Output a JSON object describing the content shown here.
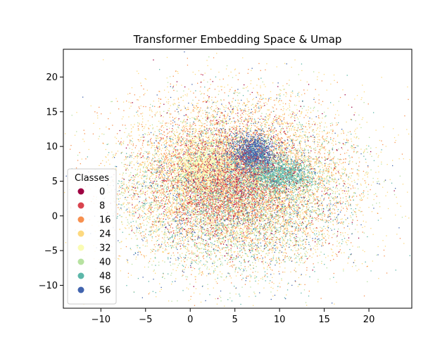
{
  "chart_data": {
    "type": "scatter",
    "title": "Transformer Embedding Space & Umap",
    "xlabel": "",
    "ylabel": "",
    "xlim": [
      -14.2,
      24.8
    ],
    "ylim": [
      -13.3,
      24.0
    ],
    "xticks": [
      -10,
      -5,
      0,
      5,
      10,
      15,
      20
    ],
    "yticks": [
      -10,
      -5,
      0,
      5,
      10,
      15,
      20
    ],
    "grid": false,
    "legend": {
      "title": "Classes",
      "placement": "lower-left",
      "entries": [
        {
          "label": "0",
          "color": "#9e0142"
        },
        {
          "label": "8",
          "color": "#d9444e"
        },
        {
          "label": "16",
          "color": "#f7904f"
        },
        {
          "label": "24",
          "color": "#fdd97f"
        },
        {
          "label": "32",
          "color": "#fafcb4"
        },
        {
          "label": "40",
          "color": "#b7e2a1"
        },
        {
          "label": "48",
          "color": "#5cb7a9"
        },
        {
          "label": "56",
          "color": "#4164ae"
        }
      ]
    },
    "point_count_approx": 20000,
    "clusters": [
      {
        "class_color": "#fdd97f",
        "center": [
          5,
          5
        ],
        "spread": [
          6.5,
          6
        ],
        "weight": 0.3
      },
      {
        "class_color": "#f7904f",
        "center": [
          5,
          5
        ],
        "spread": [
          6,
          5.5
        ],
        "weight": 0.18
      },
      {
        "class_color": "#b7e2a1",
        "center": [
          5,
          4
        ],
        "spread": [
          6,
          5.5
        ],
        "weight": 0.14
      },
      {
        "class_color": "#fafcb4",
        "center": [
          2,
          7
        ],
        "spread": [
          2,
          1.8
        ],
        "weight": 0.07
      },
      {
        "class_color": "#4164ae",
        "center": [
          7,
          9
        ],
        "spread": [
          1.3,
          1.4
        ],
        "weight": 0.06
      },
      {
        "class_color": "#5cb7a9",
        "center": [
          10,
          6
        ],
        "spread": [
          2,
          1.2
        ],
        "weight": 0.05
      },
      {
        "class_color": "#d9444e",
        "center": [
          4,
          5
        ],
        "spread": [
          3.5,
          3.5
        ],
        "weight": 0.08
      },
      {
        "class_color": "#5cb7a9",
        "center": [
          5,
          3
        ],
        "spread": [
          6.5,
          6
        ],
        "weight": 0.06
      },
      {
        "class_color": "#4164ae",
        "center": [
          5,
          4
        ],
        "spread": [
          6.5,
          6.5
        ],
        "weight": 0.04
      },
      {
        "class_color": "#9e0142",
        "center": [
          5,
          5
        ],
        "spread": [
          6,
          6
        ],
        "weight": 0.02
      }
    ]
  }
}
